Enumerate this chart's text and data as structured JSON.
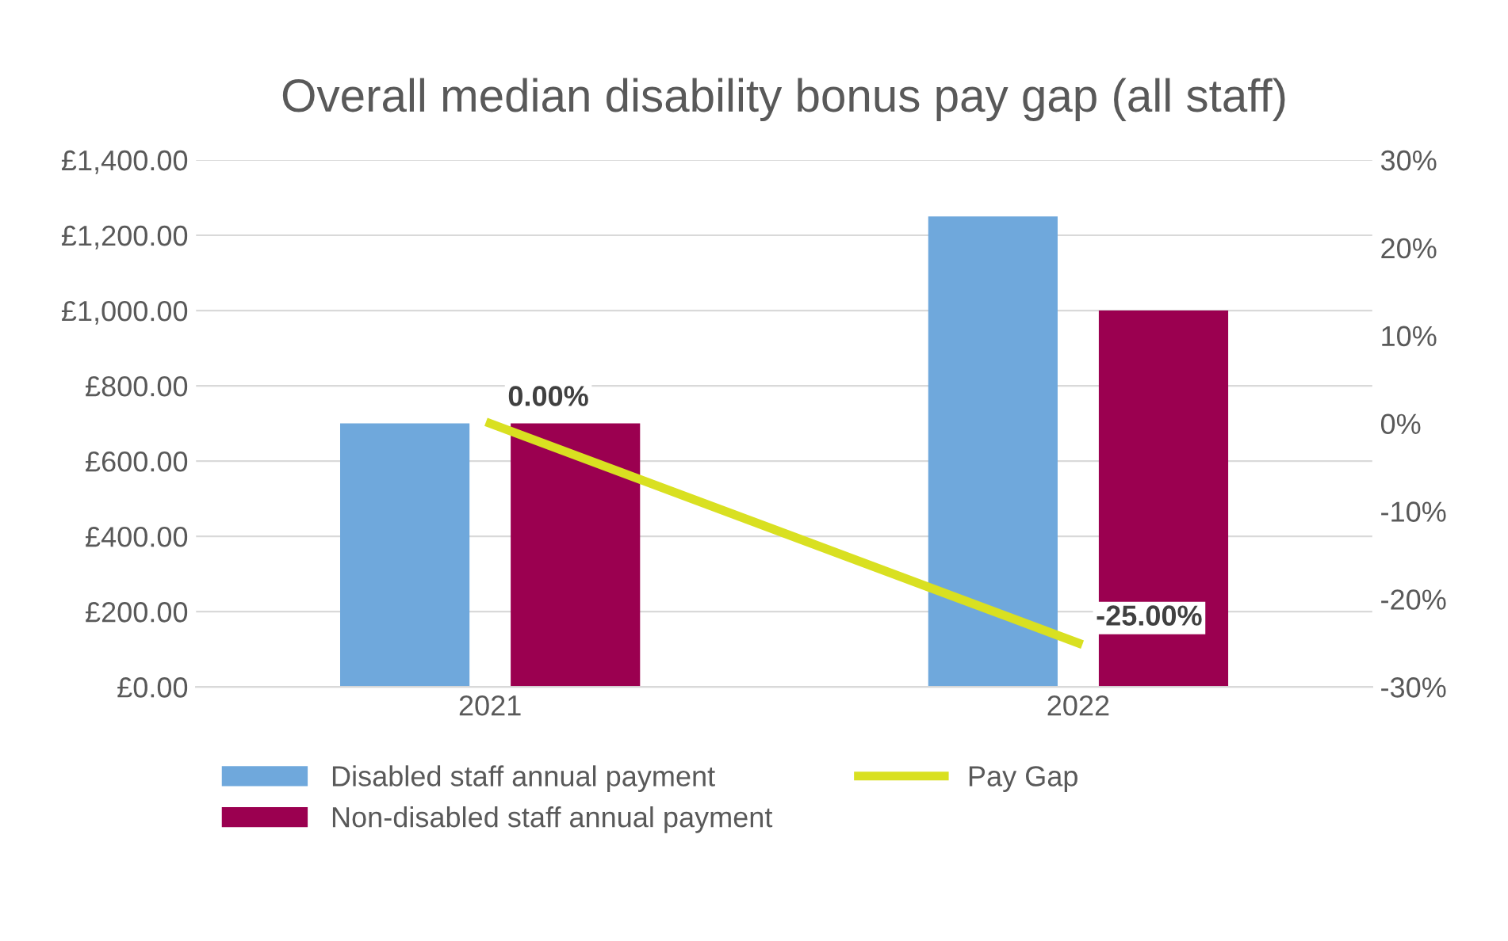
{
  "chart_data": {
    "type": "bar",
    "title": "Overall median disability bonus pay gap (all staff)",
    "categories": [
      "2021",
      "2022"
    ],
    "series": [
      {
        "name": "Disabled staff annual payment",
        "color": "#6fa8dc",
        "values": [
          700,
          1250
        ]
      },
      {
        "name": "Non-disabled staff annual payment",
        "color": "#9b0050",
        "values": [
          700,
          1000
        ]
      },
      {
        "name": "Pay Gap",
        "type": "line",
        "axis": "y2",
        "color": "#d9e021",
        "values": [
          0,
          -25
        ],
        "value_labels": [
          "0.00%",
          "-25.00%"
        ]
      }
    ],
    "ylim": [
      0,
      1400
    ],
    "yticks": [
      {
        "value": 0,
        "label": "£0.00"
      },
      {
        "value": 200,
        "label": "£200.00"
      },
      {
        "value": 400,
        "label": "£400.00"
      },
      {
        "value": 600,
        "label": "£600.00"
      },
      {
        "value": 800,
        "label": "£800.00"
      },
      {
        "value": 1000,
        "label": "£1,000.00"
      },
      {
        "value": 1200,
        "label": "£1,200.00"
      },
      {
        "value": 1400,
        "label": "£1,400.00"
      }
    ],
    "y2lim": [
      -30,
      30
    ],
    "y2ticks": [
      {
        "value": -30,
        "label": "-30%"
      },
      {
        "value": -20,
        "label": "-20%"
      },
      {
        "value": -10,
        "label": "-10%"
      },
      {
        "value": 0,
        "label": "0%"
      },
      {
        "value": 10,
        "label": "10%"
      },
      {
        "value": 20,
        "label": "20%"
      },
      {
        "value": 30,
        "label": "30%"
      }
    ],
    "grid": "y",
    "legend": "bottom",
    "marker": "none",
    "line_style": "solid"
  }
}
